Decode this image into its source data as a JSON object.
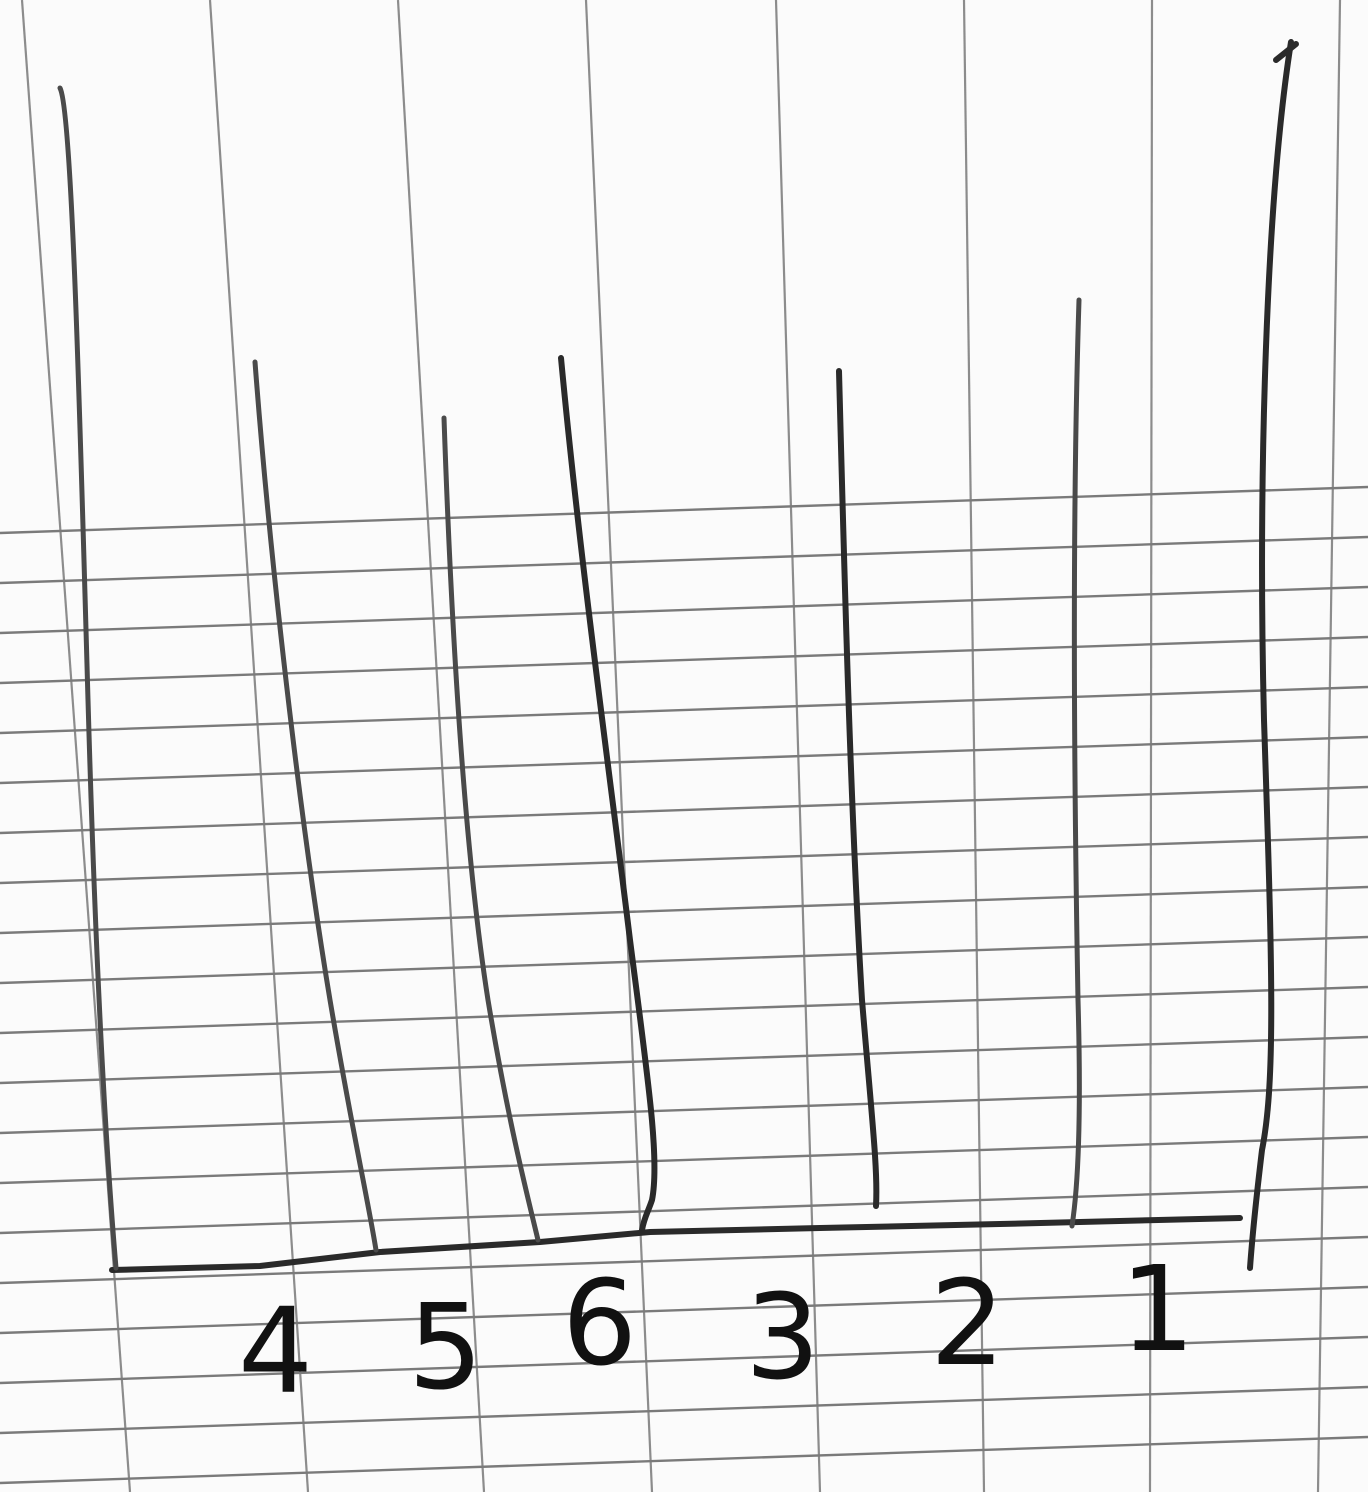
{
  "labels": [
    "4",
    "5",
    "6",
    "3",
    "2",
    "1"
  ]
}
